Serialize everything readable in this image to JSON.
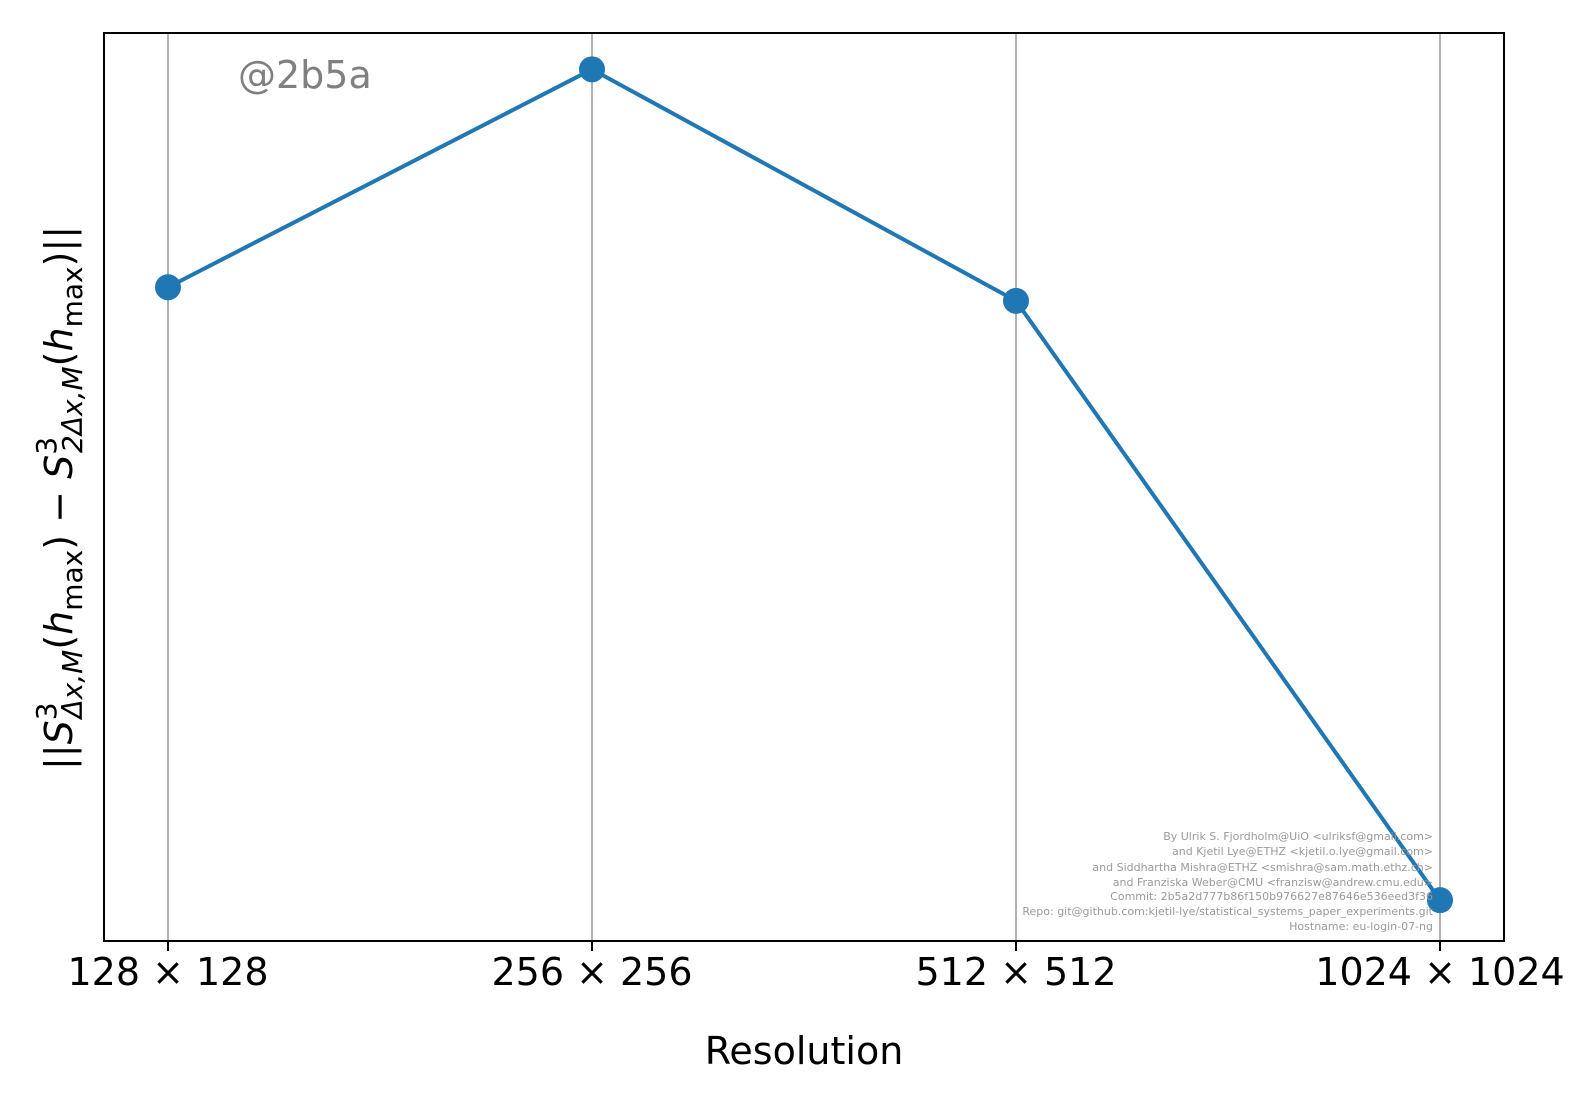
{
  "chart_data": {
    "type": "line",
    "categories": [
      "128 × 128",
      "256 × 256",
      "512 × 512",
      "1024 × 1024"
    ],
    "series": [
      {
        "values": [
          0.72,
          0.96,
          0.705,
          0.045
        ],
        "color": "#1f77b4"
      }
    ],
    "xlabel": "Resolution",
    "ylabel": "||S³Δx,M(hmax) − S³2Δx,M(hmax)||",
    "ylim": [
      0.0,
      1.0
    ],
    "yticks_shown": false,
    "grid": "vertical",
    "marker": "circle"
  },
  "watermark": "@2b5a",
  "credits": [
    "By Ulrik S. Fjordholm@UiO <ulriksf@gmail.com>",
    "and Kjetil Lye@ETHZ <kjetil.o.lye@gmail.com>",
    "and Siddhartha Mishra@ETHZ <smishra@sam.math.ethz.ch>",
    "and Franziska Weber@CMU <franzisw@andrew.cmu.edu>",
    "Commit: 2b5a2d777b86f150b976627e87646e536eed3f36",
    "Repo: git@github.com:kjetil-lye/statistical_systems_paper_experiments.git",
    "Hostname: eu-login-07-ng"
  ]
}
